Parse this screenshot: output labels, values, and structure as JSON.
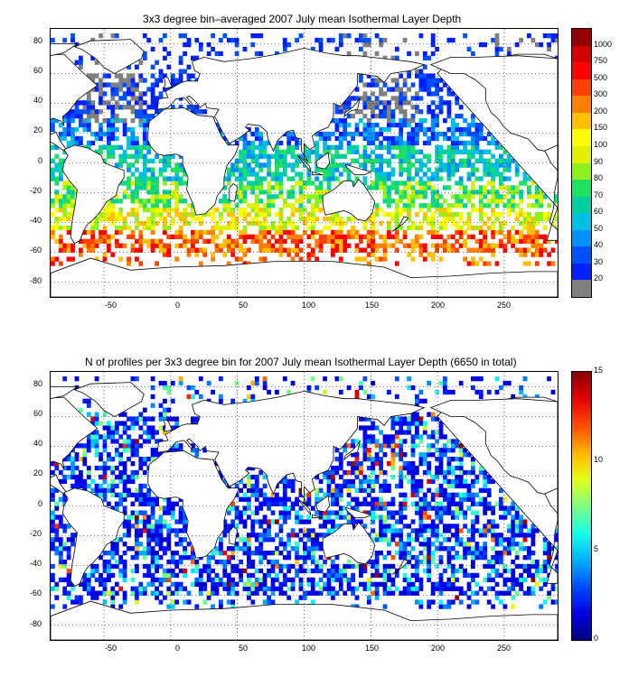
{
  "panels": [
    {
      "title": "3x3 degree bin–averaged 2007 July mean Isothermal Layer Depth",
      "colorbar": {
        "labels": [
          "20",
          "30",
          "40",
          "50",
          "60",
          "70",
          "80",
          "90",
          "100",
          "150",
          "200",
          "300",
          "500",
          "750",
          "1000"
        ],
        "colors": [
          "#808080",
          "#0020ff",
          "#0050ff",
          "#0090ff",
          "#00c0e0",
          "#00d0a0",
          "#20e060",
          "#90f020",
          "#e0f000",
          "#ffff00",
          "#ffc000",
          "#ff8000",
          "#ff4000",
          "#ff0000",
          "#d00000",
          "#900000"
        ]
      }
    },
    {
      "title": "N of profiles per 3x3 degree bin for 2007 July mean Isothermal Layer Depth  (6650 in total)",
      "colorbar": {
        "labels": [
          "0",
          "5",
          "10",
          "15"
        ],
        "range": [
          0,
          15
        ]
      }
    }
  ],
  "axes": {
    "x_ticks": [
      "-50",
      "0",
      "50",
      "100",
      "150",
      "200",
      "250"
    ],
    "y_ticks": [
      "80",
      "60",
      "40",
      "20",
      "0",
      "-20",
      "-40",
      "-60",
      "-80"
    ],
    "lon_range": [
      -90,
      290
    ],
    "lat_range": [
      -90,
      90
    ]
  },
  "colors": {
    "land": "#ffffff",
    "coast": "#000000",
    "grid": "#000000"
  }
}
